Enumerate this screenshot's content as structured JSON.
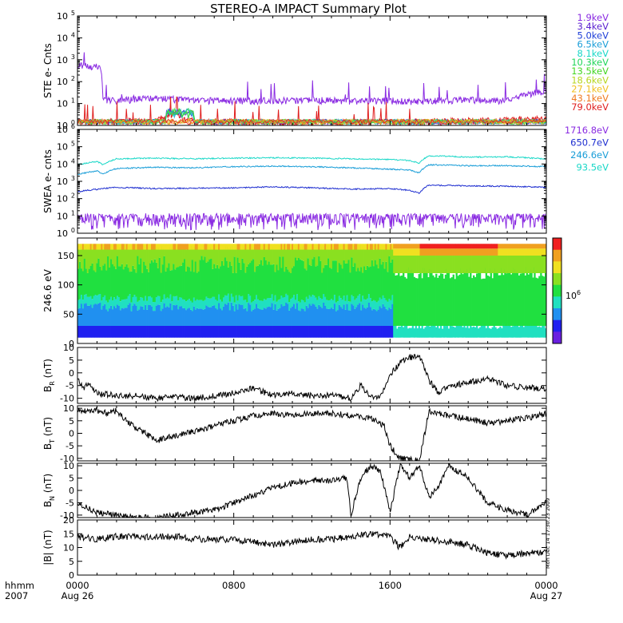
{
  "chart_data": {
    "type": "line",
    "title": "STEREO-A IMPACT Summary Plot",
    "time_axis": {
      "year": "2007",
      "unit_label": "hhmm",
      "ticks": [
        {
          "hhmm": "0000",
          "date": "Aug 26",
          "hour": 0
        },
        {
          "hhmm": "0800",
          "date": "",
          "hour": 8
        },
        {
          "hhmm": "1600",
          "date": "",
          "hour": 16
        },
        {
          "hhmm": "0000",
          "date": "Aug 27",
          "hour": 24
        }
      ],
      "range_hours": [
        0,
        24
      ]
    },
    "panels": [
      {
        "id": "ste",
        "type": "line",
        "ylabel": "STE e- Cnts",
        "yscale": "log",
        "ylim": [
          1,
          100000
        ],
        "yticks": [
          {
            "base": "10",
            "exp": "0"
          },
          {
            "base": "10",
            "exp": "1"
          },
          {
            "base": "10",
            "exp": "2"
          },
          {
            "base": "10",
            "exp": "3"
          },
          {
            "base": "10",
            "exp": "4"
          },
          {
            "base": "10",
            "exp": "5"
          }
        ],
        "legend": [
          {
            "label": "1.9keV",
            "color": "#8a2be2"
          },
          {
            "label": "3.4keV",
            "color": "#5a1fd0"
          },
          {
            "label": "5.0keV",
            "color": "#1f3fd8"
          },
          {
            "label": "6.5keV",
            "color": "#1a9ed8"
          },
          {
            "label": "8.1keV",
            "color": "#1ad8c8"
          },
          {
            "label": "10.3keV",
            "color": "#22d65a"
          },
          {
            "label": "13.5keV",
            "color": "#44d622"
          },
          {
            "label": "18.6keV",
            "color": "#b8d622"
          },
          {
            "label": "27.1keV",
            "color": "#f0c020"
          },
          {
            "label": "43.1keV",
            "color": "#f07a20"
          },
          {
            "label": "79.0keV",
            "color": "#e02020"
          }
        ],
        "series": [
          {
            "name": "1.9keV",
            "hours": [
              0,
              0.6,
              1.1,
              1.3,
              2,
              4,
              6,
              8,
              10,
              12,
              14,
              16,
              17,
              18,
              19,
              20,
              21,
              22,
              23,
              24
            ],
            "values": [
              600,
              500,
              480,
              14,
              14,
              18,
              14,
              14,
              14,
              15,
              13,
              14,
              13,
              14,
              14,
              15,
              14,
              14,
              25,
              40
            ]
          },
          {
            "name": "79.0keV",
            "hours": [
              0,
              4,
              5,
              5.5,
              6,
              12,
              18,
              24
            ],
            "values": [
              1.5,
              1.6,
              3.5,
              2,
              1.5,
              1.4,
              1.5,
              2
            ]
          }
        ]
      },
      {
        "id": "swea",
        "type": "line",
        "ylabel": "SWEA e- cnts",
        "yscale": "log",
        "ylim": [
          1,
          1000000
        ],
        "yticks": [
          {
            "base": "10",
            "exp": "0"
          },
          {
            "base": "10",
            "exp": "1"
          },
          {
            "base": "10",
            "exp": "2"
          },
          {
            "base": "10",
            "exp": "3"
          },
          {
            "base": "10",
            "exp": "4"
          },
          {
            "base": "10",
            "exp": "5"
          },
          {
            "base": "10",
            "exp": "6"
          }
        ],
        "legend": [
          {
            "label": "1716.8eV",
            "color": "#8a2be2"
          },
          {
            "label": "650.7eV",
            "color": "#1f2fd0"
          },
          {
            "label": "246.6eV",
            "color": "#1a9ed8"
          },
          {
            "label": "93.5eV",
            "color": "#1ad8c8"
          }
        ],
        "series": [
          {
            "name": "93.5eV",
            "hours": [
              0,
              1,
              1.3,
              2,
              4,
              6,
              8,
              10,
              12,
              14,
              16,
              17,
              17.5,
              18,
              20,
              22,
              24
            ],
            "values": [
              9000,
              14000,
              9000,
              20000,
              22000,
              20000,
              22000,
              23000,
              22000,
              20000,
              18000,
              16000,
              11000,
              30000,
              25000,
              26000,
              20000
            ]
          },
          {
            "name": "246.6eV",
            "hours": [
              0,
              1,
              1.3,
              2,
              4,
              6,
              8,
              10,
              12,
              14,
              16,
              17,
              17.5,
              18,
              20,
              22,
              24
            ],
            "values": [
              2500,
              4000,
              2500,
              5500,
              6500,
              6000,
              7000,
              7500,
              7000,
              6000,
              5000,
              4500,
              3000,
              9000,
              8000,
              8000,
              7000
            ]
          },
          {
            "name": "650.7eV",
            "hours": [
              0,
              1,
              2,
              4,
              6,
              8,
              10,
              12,
              14,
              16,
              17,
              17.5,
              18,
              20,
              22,
              24
            ],
            "values": [
              250,
              350,
              450,
              380,
              400,
              420,
              480,
              420,
              360,
              380,
              300,
              200,
              600,
              550,
              520,
              450
            ]
          },
          {
            "name": "1716.8eV",
            "hours": [
              0,
              6,
              12,
              18,
              24
            ],
            "values": [
              5,
              5,
              5,
              5,
              5
            ]
          }
        ]
      },
      {
        "id": "pad",
        "type": "heatmap",
        "ylabel": "246.6 eV",
        "ylim": [
          0,
          180
        ],
        "yticks": [
          "0",
          "50",
          "100",
          "150"
        ],
        "colorbar_label": "10",
        "colorbar_exp": "6",
        "colorbar_colors": [
          "#f02020",
          "#f0a020",
          "#f0e020",
          "#8ae020",
          "#20e040",
          "#20e0c0",
          "#2090f0",
          "#2020f0",
          "#6a1fe0"
        ]
      },
      {
        "id": "br",
        "type": "line",
        "ylabel": "B",
        "ylabel_sub": "R",
        "ylabel_unit": " (nT)",
        "ylim": [
          -12,
          10
        ],
        "yticks": [
          "-10",
          "-5",
          "0",
          "5",
          "10"
        ],
        "series": [
          {
            "name": "BR",
            "hours": [
              0,
              0.3,
              0.6,
              1,
              2,
              3,
              4,
              5,
              6,
              7,
              8,
              9,
              10,
              11,
              12,
              13,
              14,
              14.5,
              15,
              15.5,
              16,
              16.5,
              17,
              17.5,
              18,
              18.5,
              19,
              20,
              21,
              22,
              23,
              24
            ],
            "values": [
              -2,
              -6,
              -4,
              -8,
              -9,
              -9,
              -10,
              -9.5,
              -10,
              -9,
              -8,
              -6,
              -9,
              -8,
              -9,
              -9,
              -10,
              -5,
              -9,
              -10,
              -1,
              4,
              6,
              7,
              -3,
              -8,
              -5,
              -4,
              -2,
              -5,
              -6,
              -6
            ]
          }
        ]
      },
      {
        "id": "bt",
        "type": "line",
        "ylabel": "B",
        "ylabel_sub": "T",
        "ylabel_unit": " (nT)",
        "ylim": [
          -11,
          11
        ],
        "yticks": [
          "-10",
          "-5",
          "0",
          "5",
          "10"
        ],
        "series": [
          {
            "name": "BT",
            "hours": [
              0,
              1,
              1.5,
              2,
              2.5,
              3,
              3.5,
              4,
              5,
              6,
              7,
              8,
              9,
              10,
              11,
              12,
              13,
              14,
              15,
              15.7,
              16,
              16.5,
              17,
              17.5,
              18,
              19,
              20,
              21,
              22,
              23,
              24
            ],
            "values": [
              9,
              9,
              8,
              9,
              5,
              2,
              0,
              -3,
              -1,
              1,
              3,
              5,
              7,
              8,
              7,
              8,
              8,
              7,
              6,
              3,
              -5,
              -10,
              -10,
              -11,
              9,
              7,
              6,
              4,
              5,
              6,
              8
            ]
          }
        ]
      },
      {
        "id": "bn",
        "type": "line",
        "ylabel": "B",
        "ylabel_sub": "N",
        "ylabel_unit": " (nT)",
        "ylim": [
          -11,
          11
        ],
        "yticks": [
          "-10",
          "-5",
          "0",
          "5",
          "10"
        ],
        "series": [
          {
            "name": "BN",
            "hours": [
              0,
              0.5,
              1,
              2,
              3,
              4,
              5,
              6,
              7,
              8,
              9,
              10,
              11,
              12,
              13,
              13.8,
              14,
              14.5,
              15,
              15.5,
              16,
              16.5,
              17,
              17.5,
              18,
              18.5,
              19,
              20,
              21,
              22,
              23,
              24
            ],
            "values": [
              -5,
              -7,
              -9,
              -10,
              -11,
              -11,
              -10,
              -9,
              -8,
              -5,
              -2,
              1,
              3,
              4,
              4,
              5,
              -10,
              5,
              10,
              8,
              -9,
              10,
              5,
              10,
              -3,
              2,
              10,
              5,
              -5,
              -8,
              -10,
              -5
            ]
          }
        ]
      },
      {
        "id": "bmag",
        "type": "line",
        "ylabel": "|B| (nT)",
        "ylim": [
          0,
          20
        ],
        "yticks": [
          "0",
          "5",
          "10",
          "15",
          "20"
        ],
        "series": [
          {
            "name": "|B|",
            "hours": [
              0,
              1,
              2,
              3,
              4,
              5,
              6,
              7,
              8,
              9,
              10,
              11,
              12,
              13,
              14,
              15,
              16,
              16.5,
              17,
              18,
              19,
              20,
              21,
              22,
              23,
              24
            ],
            "values": [
              14,
              13,
              14,
              14,
              14,
              14,
              13,
              13,
              13,
              12,
              11,
              12,
              13,
              13,
              14,
              15,
              14,
              10,
              14,
              13,
              12,
              11,
              8,
              7,
              8,
              8
            ]
          }
        ]
      }
    ],
    "side_annotation": "Mon Dec 14 17:30:23 2009"
  }
}
